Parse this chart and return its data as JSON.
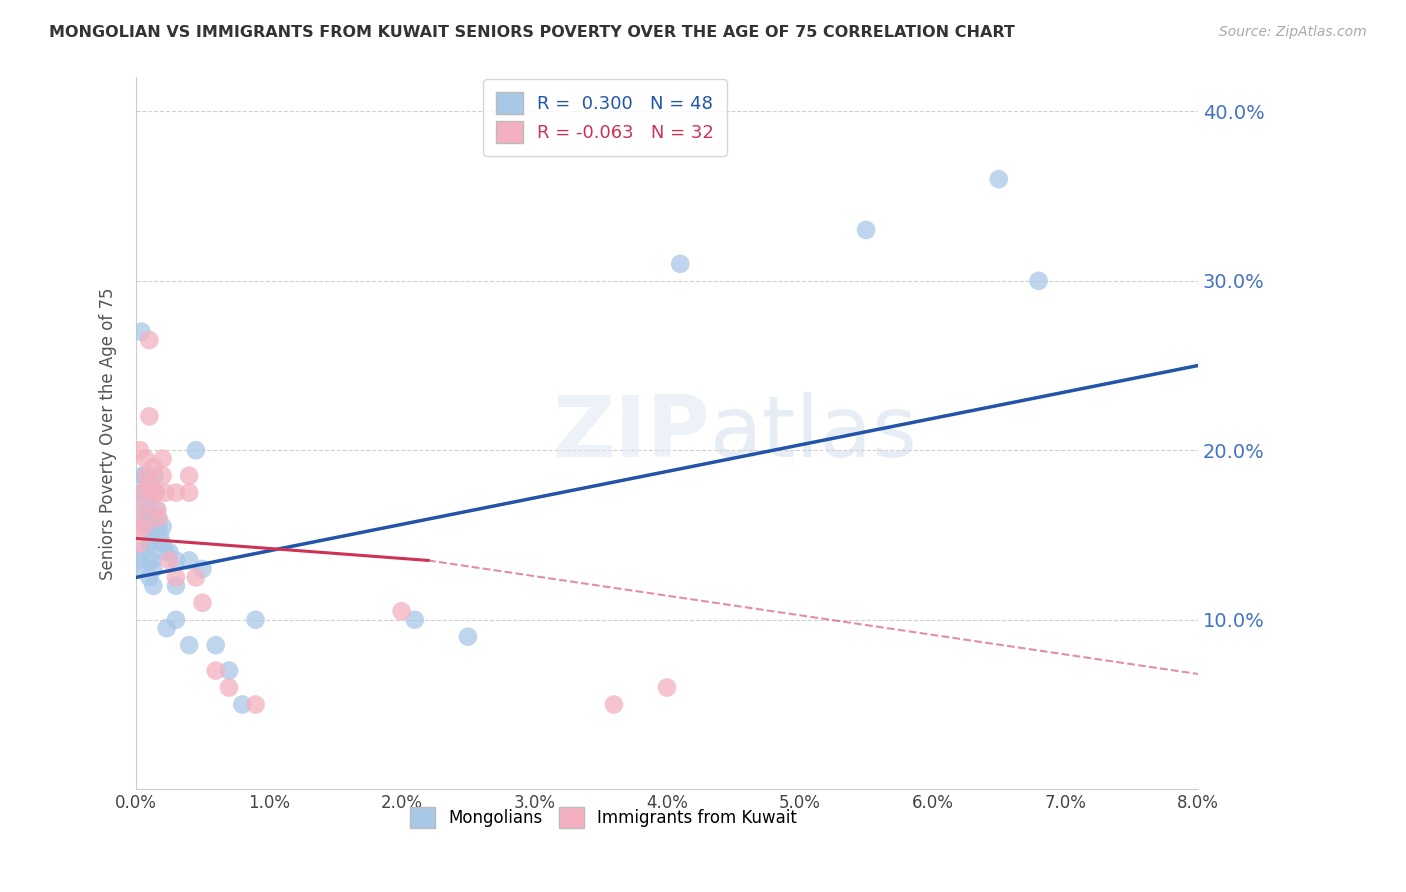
{
  "title": "MONGOLIAN VS IMMIGRANTS FROM KUWAIT SENIORS POVERTY OVER THE AGE OF 75 CORRELATION CHART",
  "source": "Source: ZipAtlas.com",
  "ylabel": "Seniors Poverty Over the Age of 75",
  "xlim": [
    0.0,
    0.08
  ],
  "ylim": [
    0.0,
    0.42
  ],
  "yticks_right": [
    0.1,
    0.2,
    0.3,
    0.4
  ],
  "ytick_labels_right": [
    "10.0%",
    "20.0%",
    "30.0%",
    "40.0%"
  ],
  "xticks": [
    0.0,
    0.01,
    0.02,
    0.03,
    0.04,
    0.05,
    0.06,
    0.07,
    0.08
  ],
  "xtick_labels": [
    "0.0%",
    "1.0%",
    "2.0%",
    "3.0%",
    "4.0%",
    "5.0%",
    "6.0%",
    "7.0%",
    "8.0%"
  ],
  "mongolian_color": "#a8c8e8",
  "kuwait_color": "#f4b0c0",
  "mongolian_line_color": "#2255aa",
  "kuwait_line_color": "#cc3355",
  "background_color": "#ffffff",
  "watermark": "ZIPatlas",
  "R_mongolian": "0.300",
  "N_mongolian": "48",
  "R_kuwait": "-0.063",
  "N_kuwait": "32",
  "label_mongolian": "Mongolians",
  "label_kuwait": "Immigrants from Kuwait",
  "mongolian_line_x0": 0.0,
  "mongolian_line_y0": 0.125,
  "mongolian_line_x1": 0.08,
  "mongolian_line_y1": 0.25,
  "kuwait_line_x0": 0.0,
  "kuwait_line_y0": 0.148,
  "kuwait_line_x1_solid": 0.022,
  "kuwait_line_y1_solid": 0.135,
  "kuwait_line_x1_dash": 0.08,
  "kuwait_line_y1_dash": 0.068,
  "mongolian_x": [
    0.0002,
    0.0002,
    0.0003,
    0.0004,
    0.0005,
    0.0005,
    0.0006,
    0.0006,
    0.0007,
    0.0007,
    0.0008,
    0.0008,
    0.001,
    0.001,
    0.001,
    0.001,
    0.0012,
    0.0012,
    0.0013,
    0.0013,
    0.0014,
    0.0015,
    0.0015,
    0.0016,
    0.0017,
    0.0018,
    0.002,
    0.002,
    0.0022,
    0.0023,
    0.0025,
    0.003,
    0.003,
    0.003,
    0.004,
    0.004,
    0.0045,
    0.005,
    0.006,
    0.007,
    0.008,
    0.009,
    0.021,
    0.025,
    0.041,
    0.055,
    0.065,
    0.068
  ],
  "mongolian_y": [
    0.135,
    0.13,
    0.14,
    0.27,
    0.185,
    0.175,
    0.185,
    0.175,
    0.17,
    0.16,
    0.165,
    0.155,
    0.155,
    0.145,
    0.135,
    0.125,
    0.145,
    0.135,
    0.13,
    0.12,
    0.185,
    0.175,
    0.165,
    0.16,
    0.155,
    0.15,
    0.155,
    0.145,
    0.14,
    0.095,
    0.14,
    0.135,
    0.12,
    0.1,
    0.135,
    0.085,
    0.2,
    0.13,
    0.085,
    0.07,
    0.05,
    0.1,
    0.1,
    0.09,
    0.31,
    0.33,
    0.36,
    0.3
  ],
  "kuwait_x": [
    0.0002,
    0.0002,
    0.0003,
    0.0004,
    0.0005,
    0.0006,
    0.0007,
    0.0008,
    0.001,
    0.001,
    0.001,
    0.0012,
    0.0013,
    0.0015,
    0.0016,
    0.0017,
    0.002,
    0.002,
    0.0022,
    0.0025,
    0.003,
    0.003,
    0.004,
    0.004,
    0.0045,
    0.005,
    0.006,
    0.007,
    0.009,
    0.02,
    0.036,
    0.04
  ],
  "kuwait_y": [
    0.155,
    0.145,
    0.2,
    0.175,
    0.165,
    0.155,
    0.195,
    0.185,
    0.265,
    0.22,
    0.18,
    0.175,
    0.19,
    0.175,
    0.165,
    0.16,
    0.195,
    0.185,
    0.175,
    0.135,
    0.175,
    0.125,
    0.185,
    0.175,
    0.125,
    0.11,
    0.07,
    0.06,
    0.05,
    0.105,
    0.05,
    0.06
  ]
}
